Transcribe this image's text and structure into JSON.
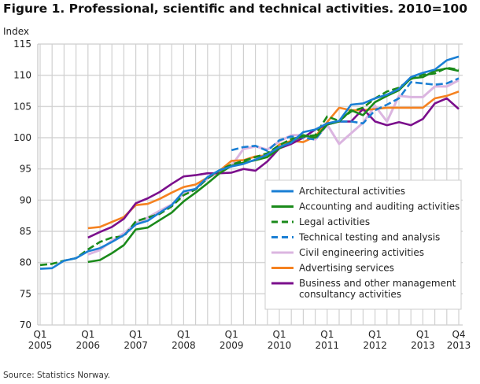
{
  "title": "Figure 1. Professional, scientific and technical activities. 2010=100",
  "source": "Source: Statistics Norway.",
  "chart_data": {
    "type": "line",
    "title": "Figure 1. Professional, scientific and technical activities. 2010=100",
    "ylabel": "Index",
    "xlabel": "",
    "ylim": [
      70,
      115
    ],
    "yticks": [
      70,
      75,
      80,
      85,
      90,
      95,
      100,
      105,
      110,
      115
    ],
    "x_quarters_start": "2005Q1",
    "x_quarters_count": 36,
    "xticks": [
      {
        "q": 0,
        "label1": "Q1",
        "label2": "2005"
      },
      {
        "q": 4,
        "label1": "Q1",
        "label2": "2006"
      },
      {
        "q": 8,
        "label1": "Q1",
        "label2": "2007"
      },
      {
        "q": 12,
        "label1": "Q1",
        "label2": "2008"
      },
      {
        "q": 16,
        "label1": "Q1",
        "label2": "2009"
      },
      {
        "q": 20,
        "label1": "Q1",
        "label2": "2010"
      },
      {
        "q": 24,
        "label1": "Q1",
        "label2": "2011"
      },
      {
        "q": 28,
        "label1": "Q1",
        "label2": "2012"
      },
      {
        "q": 32,
        "label1": "Q1",
        "label2": "2013"
      },
      {
        "q": 35,
        "label1": "Q4",
        "label2": "2013"
      }
    ],
    "grid": true,
    "legend_position": "bottom-right",
    "series": [
      {
        "name": "Architectural activities",
        "color": "#1a7fd4",
        "dashed": false,
        "start": 0,
        "values": [
          79.0,
          79.1,
          80.3,
          80.7,
          81.8,
          82.3,
          83.3,
          84.4,
          86.1,
          86.7,
          88.0,
          89.2,
          91.4,
          91.8,
          93.7,
          94.8,
          95.4,
          95.8,
          96.5,
          97.3,
          98.5,
          99.2,
          100.9,
          101.3,
          102.3,
          102.7,
          105.3,
          105.5,
          106.3,
          106.9,
          107.8,
          109.7,
          110.4,
          110.9,
          112.4,
          113.0
        ]
      },
      {
        "name": "Accounting and auditing activities",
        "color": "#1a8a1a",
        "dashed": false,
        "start": 4,
        "values": [
          80.1,
          80.4,
          81.5,
          82.8,
          85.3,
          85.6,
          86.8,
          88.0,
          89.8,
          91.2,
          92.7,
          94.3,
          95.5,
          96.0,
          96.4,
          96.9,
          98.3,
          99.4,
          100.4,
          100.0,
          102.1,
          102.6,
          104.4,
          103.6,
          105.7,
          106.7,
          107.6,
          109.5,
          109.7,
          110.7,
          111.1,
          110.7
        ]
      },
      {
        "name": "Legal activities",
        "color": "#1a8a1a",
        "dashed": true,
        "start": 0,
        "values": [
          79.6,
          79.8,
          80.3,
          80.7,
          82.1,
          83.3,
          84.0,
          84.2,
          86.6,
          87.2,
          87.8,
          89.0,
          90.8,
          91.7,
          93.5,
          94.8,
          95.7,
          96.3,
          96.9,
          97.5,
          98.8,
          99.8,
          100.2,
          100.4,
          103.4,
          102.7,
          104.2,
          104.8,
          106.3,
          107.4,
          108.0,
          109.4,
          110.1,
          110.3,
          111.2,
          110.9
        ]
      },
      {
        "name": "Technical testing and analysis",
        "color": "#1a7fd4",
        "dashed": true,
        "start": 16,
        "values": [
          98.0,
          98.5,
          98.7,
          97.9,
          99.6,
          100.2,
          100.0,
          99.7,
          102.1,
          102.6,
          102.6,
          102.3,
          104.4,
          105.3,
          106.3,
          108.9,
          108.7,
          108.5,
          108.7,
          109.5
        ]
      },
      {
        "name": "Civil engineering activities",
        "color": "#dbb5e0",
        "dashed": false,
        "start": 4,
        "values": [
          81.3,
          82.0,
          83.5,
          84.7,
          86.3,
          87.2,
          88.3,
          89.3,
          91.0,
          91.8,
          93.5,
          94.5,
          95.5,
          98.2,
          98.6,
          98.1,
          99.4,
          100.4,
          100.4,
          99.7,
          102.1,
          99.0,
          100.7,
          102.4,
          105.1,
          102.6,
          106.7,
          106.5,
          106.5,
          108.2,
          108.2,
          109.2
        ]
      },
      {
        "name": "Advertising services",
        "color": "#f58220",
        "dashed": false,
        "start": 4,
        "values": [
          85.5,
          85.7,
          86.5,
          87.3,
          89.2,
          89.4,
          90.2,
          91.2,
          92.1,
          92.5,
          93.6,
          94.7,
          96.3,
          96.4,
          97.0,
          97.2,
          98.9,
          99.5,
          99.3,
          100.2,
          102.5,
          104.8,
          104.4,
          104.4,
          104.6,
          104.8,
          104.8,
          104.8,
          104.8,
          106.3,
          106.7,
          107.4
        ]
      },
      {
        "name": "Business and other management consultancy activities",
        "color": "#7b0f8c",
        "dashed": false,
        "start": 4,
        "values": [
          84.0,
          84.9,
          85.7,
          87.0,
          89.5,
          90.3,
          91.3,
          92.6,
          93.8,
          94.0,
          94.3,
          94.3,
          94.4,
          95.0,
          94.7,
          96.2,
          98.3,
          99.0,
          100.0,
          101.3,
          102.1,
          102.6,
          102.6,
          104.6,
          102.6,
          102.0,
          102.5,
          102.0,
          103.0,
          105.5,
          106.3,
          104.6
        ]
      }
    ],
    "legend_labels": [
      [
        "Architectural activities"
      ],
      [
        "Accounting and auditing activities"
      ],
      [
        "Legal activities"
      ],
      [
        "Technical testing and analysis"
      ],
      [
        "Civil engineering activities"
      ],
      [
        "Advertising services"
      ],
      [
        "Business and other management",
        "consultancy activities"
      ]
    ]
  }
}
